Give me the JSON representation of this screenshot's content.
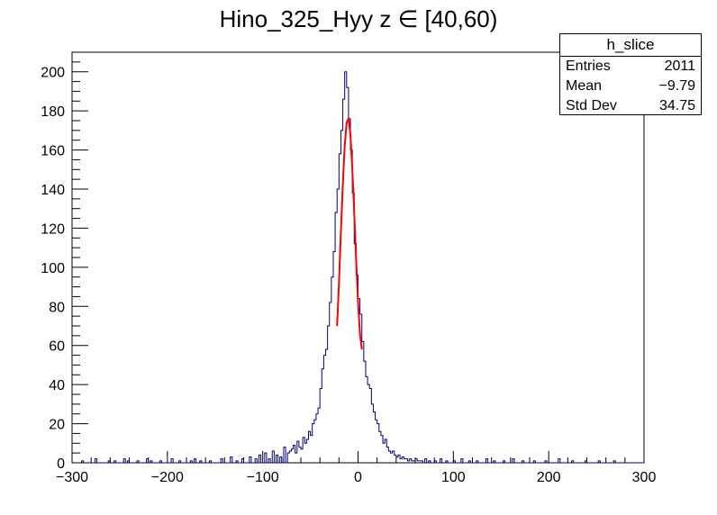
{
  "title": "Hino_325_Hyy z  ∈ [40,60)",
  "stats": {
    "name": "h_slice",
    "rows": [
      {
        "label": "Entries",
        "value": "2011"
      },
      {
        "label": "Mean",
        "value": "−9.79"
      },
      {
        "label": "Std Dev",
        "value": "34.75"
      }
    ]
  },
  "colors": {
    "histogram": "#000080",
    "fit": "#ff0000",
    "frame": "#000000"
  },
  "chart_data": {
    "type": "histogram",
    "title": "Hino_325_Hyy z  ∈ [40,60)",
    "xlabel": "",
    "ylabel": "",
    "xlim": [
      -300,
      300
    ],
    "ylim": [
      0,
      210
    ],
    "xticks": [
      -300,
      -200,
      -100,
      0,
      100,
      200,
      300
    ],
    "xtick_labels": [
      "−300",
      "−200",
      "−100",
      "0",
      "100",
      "200",
      "300"
    ],
    "yticks": [
      0,
      20,
      40,
      60,
      80,
      100,
      120,
      140,
      160,
      180,
      200
    ],
    "ytick_labels": [
      "0",
      "20",
      "40",
      "60",
      "80",
      "100",
      "120",
      "140",
      "160",
      "180",
      "200"
    ],
    "bin_width": 2,
    "series": [
      {
        "kind": "histogram",
        "x": [
          -290,
          -276,
          -262,
          -256,
          -246,
          -242,
          -232,
          -222,
          -218,
          -208,
          -196,
          -188,
          -176,
          -172,
          -166,
          -156,
          -144,
          -134,
          -128,
          -122,
          -114,
          -108,
          -104,
          -98,
          -94,
          -90,
          -86,
          -82,
          -78,
          -74,
          -72,
          -70,
          -68,
          -66,
          -64,
          -62,
          -60,
          -58,
          -56,
          -54,
          -52,
          -50,
          -48,
          -46,
          -44,
          -42,
          -40,
          -38,
          -36,
          -34,
          -32,
          -30,
          -28,
          -26,
          -24,
          -22,
          -20,
          -18,
          -16,
          -14,
          -12,
          -10,
          -8,
          -6,
          -4,
          -2,
          0,
          2,
          4,
          6,
          8,
          10,
          12,
          14,
          16,
          18,
          20,
          22,
          24,
          26,
          28,
          30,
          32,
          34,
          36,
          38,
          40,
          42,
          44,
          46,
          48,
          50,
          52,
          54,
          56,
          58,
          60,
          62,
          64,
          66,
          70,
          74,
          80,
          86,
          92,
          100,
          108,
          116,
          124,
          134,
          142,
          152,
          162,
          172,
          184,
          196,
          210,
          224,
          238,
          252,
          268
        ],
        "counts": [
          1,
          2,
          1,
          1,
          2,
          1,
          1,
          2,
          1,
          1,
          2,
          1,
          1,
          2,
          1,
          1,
          2,
          3,
          1,
          2,
          3,
          2,
          4,
          5,
          2,
          6,
          4,
          3,
          8,
          5,
          6,
          7,
          9,
          5,
          11,
          8,
          7,
          13,
          10,
          12,
          16,
          14,
          20,
          22,
          25,
          28,
          38,
          48,
          55,
          58,
          70,
          82,
          95,
          108,
          128,
          140,
          158,
          170,
          186,
          200,
          192,
          176,
          160,
          138,
          112,
          96,
          84,
          76,
          62,
          52,
          44,
          40,
          38,
          30,
          26,
          22,
          20,
          16,
          14,
          10,
          12,
          8,
          6,
          5,
          6,
          4,
          3,
          4,
          2,
          3,
          2,
          2,
          1,
          2,
          1,
          1,
          2,
          1,
          1,
          1,
          2,
          1,
          1,
          2,
          1,
          1,
          2,
          1,
          1,
          2,
          1,
          1,
          2,
          1,
          1,
          1,
          2,
          1,
          1,
          1,
          1
        ]
      },
      {
        "kind": "fit",
        "name": "",
        "x": [
          -22,
          -20,
          -18,
          -16,
          -14,
          -12,
          -10,
          -8,
          -6,
          -4,
          -2,
          0,
          2,
          4
        ],
        "y": [
          70,
          92,
          118,
          142,
          162,
          174,
          176,
          168,
          150,
          128,
          104,
          82,
          66,
          58
        ]
      }
    ],
    "grid": false,
    "legend": "top-right"
  }
}
